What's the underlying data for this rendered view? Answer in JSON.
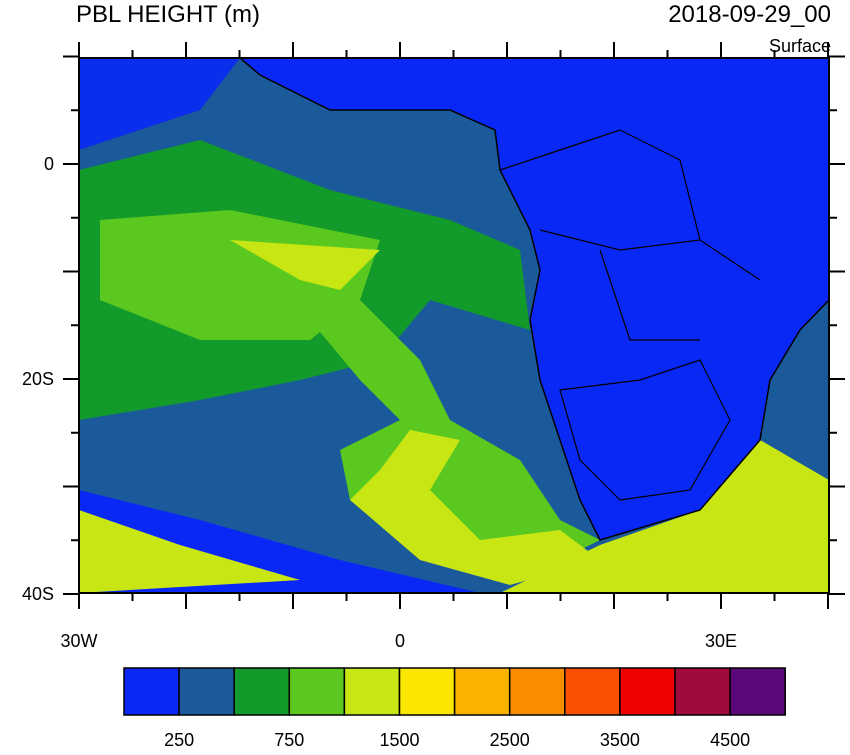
{
  "header": {
    "title": "PBL HEIGHT (m)",
    "time": "2018-09-29_00",
    "level": "Surface"
  },
  "axes": {
    "y_labels": [
      "0",
      "20S",
      "40S"
    ],
    "x_labels": [
      "30W",
      "0",
      "30E"
    ]
  },
  "colorbar": {
    "colors": [
      "#0a28f5",
      "#1a5a9a",
      "#129a2a",
      "#5ac81e",
      "#c8e614",
      "#fae600",
      "#fab400",
      "#fa8c00",
      "#fa5000",
      "#f00000",
      "#a00a3c",
      "#5a0a78"
    ],
    "labels": [
      "250",
      "750",
      "1500",
      "2500",
      "3500",
      "4500"
    ]
  }
}
